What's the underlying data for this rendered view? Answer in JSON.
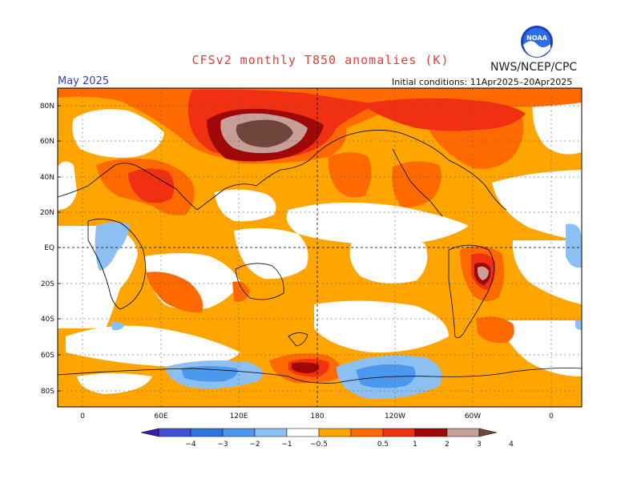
{
  "title": "CFSv2 monthly T850 anomalies (K)",
  "org": "NWS/NCEP/CPC",
  "month": "May 2025",
  "initial_conditions": "Initial conditions: 11Apr2025–20Apr2025",
  "logo_text": "NOAA",
  "lat_labels": [
    "80N",
    "60N",
    "40N",
    "20N",
    "EQ",
    "20S",
    "40S",
    "60S",
    "80S"
  ],
  "lon_labels": [
    "0",
    "60E",
    "120E",
    "180",
    "120W",
    "60W",
    "0"
  ],
  "colorbar": {
    "labels": [
      "−4",
      "−3",
      "−2",
      "−1",
      "−0.5",
      "0.5",
      "1",
      "2",
      "3",
      "4"
    ],
    "colors": [
      "#3b1fa8",
      "#3f4fd6",
      "#2f73de",
      "#4c98ee",
      "#8cbff2",
      "#ffffff",
      "#ffa500",
      "#ff6a00",
      "#f03010",
      "#a00808",
      "#c89e98",
      "#70463c"
    ]
  },
  "colors": {
    "orange": "#ffa500",
    "dark_orange": "#ff6a00",
    "red": "#f03010",
    "dark_red": "#a00808",
    "pink_brown": "#c89e98",
    "brown": "#70463c",
    "light_blue": "#8cbff2",
    "mid_blue": "#4c98ee"
  }
}
